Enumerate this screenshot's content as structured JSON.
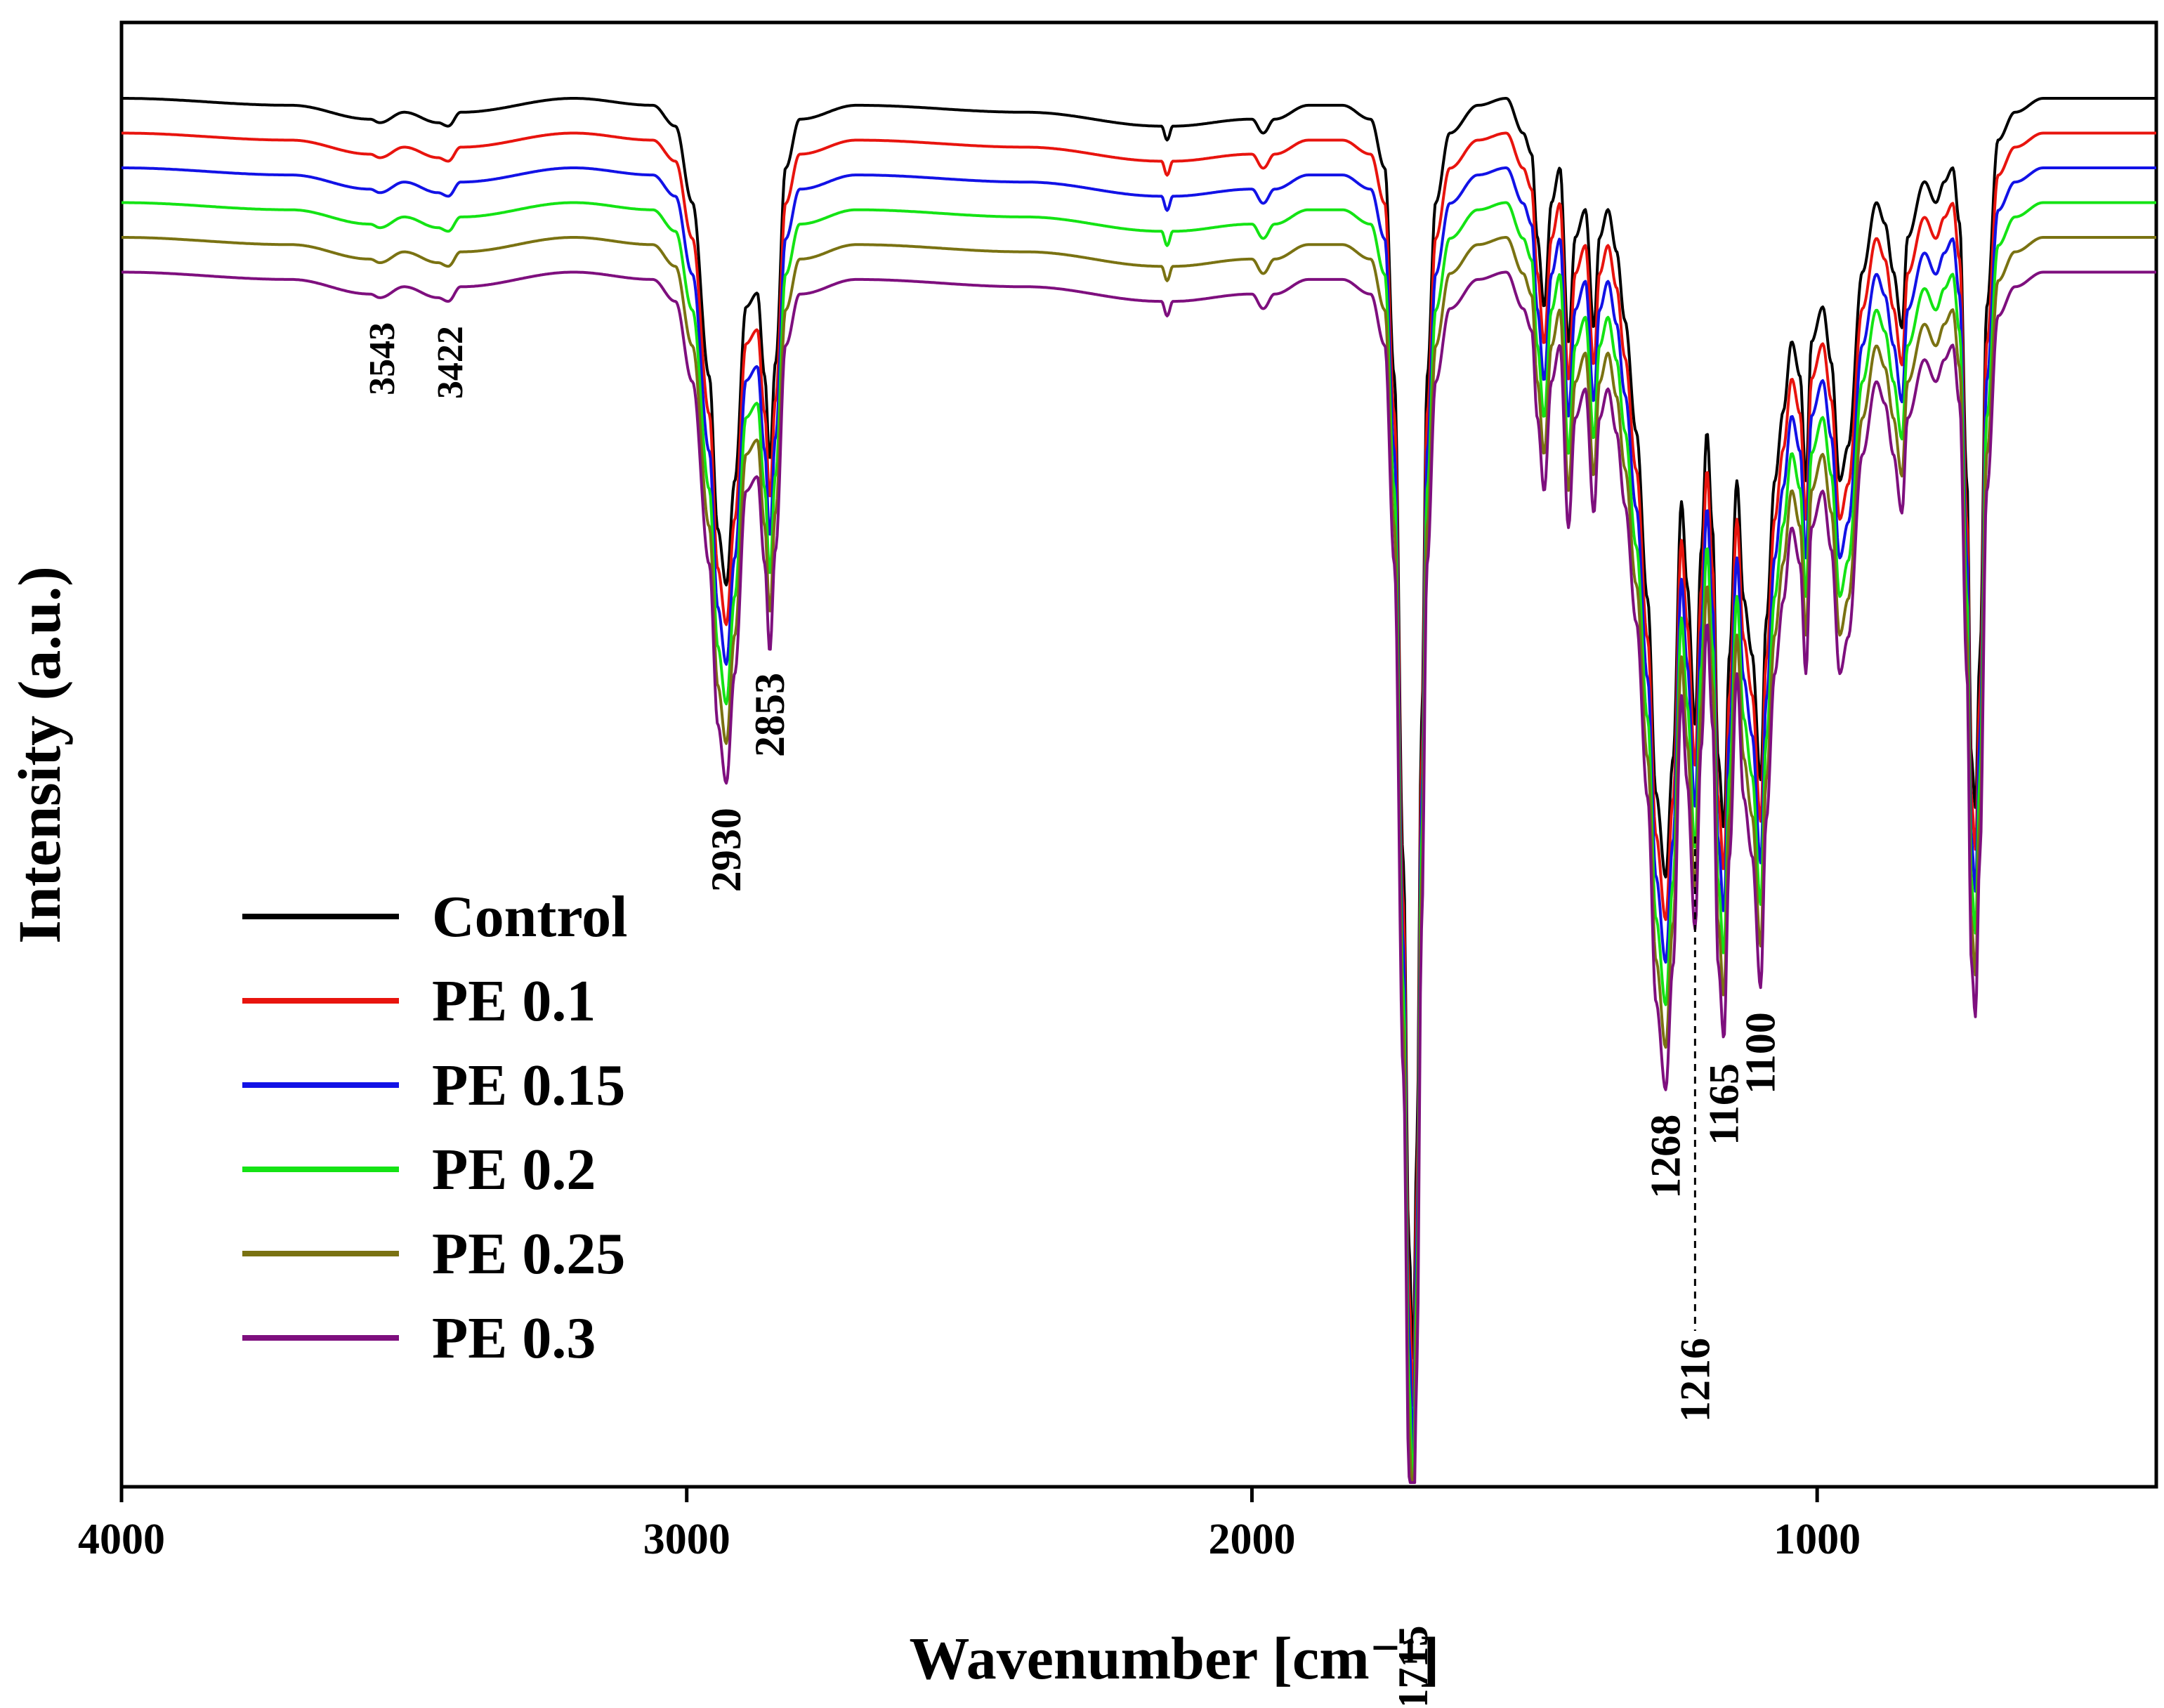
{
  "chart_data": {
    "type": "line",
    "title": "",
    "xlabel": "Wavenumber [cm⁻¹]",
    "ylabel": "Intensity (a.u.)",
    "xlim": [
      4000,
      400
    ],
    "x_reversed": true,
    "x_ticks": [
      {
        "value": 4000,
        "label": "4000"
      },
      {
        "value": 3000,
        "label": "3000"
      },
      {
        "value": 2000,
        "label": "2000"
      },
      {
        "value": 1000,
        "label": "1000"
      }
    ],
    "y_ticks_shown": false,
    "grid": false,
    "legend_position": "lower-left",
    "note": "",
    "baseline_profile": [
      [
        4000,
        0.0
      ],
      [
        3700,
        0.01
      ],
      [
        3560,
        0.03
      ],
      [
        3543,
        0.035
      ],
      [
        3500,
        0.02
      ],
      [
        3440,
        0.035
      ],
      [
        3422,
        0.04
      ],
      [
        3400,
        0.02
      ],
      [
        3200,
        0.0
      ],
      [
        3060,
        0.01
      ],
      [
        3020,
        0.04
      ],
      [
        2990,
        0.15
      ],
      [
        2960,
        0.4
      ],
      [
        2945,
        0.62
      ],
      [
        2930,
        0.7
      ],
      [
        2915,
        0.55
      ],
      [
        2895,
        0.3
      ],
      [
        2875,
        0.28
      ],
      [
        2862,
        0.4
      ],
      [
        2853,
        0.52
      ],
      [
        2843,
        0.38
      ],
      [
        2825,
        0.1
      ],
      [
        2800,
        0.03
      ],
      [
        2700,
        0.01
      ],
      [
        2400,
        0.02
      ],
      [
        2160,
        0.04
      ],
      [
        2150,
        0.06
      ],
      [
        2140,
        0.04
      ],
      [
        2000,
        0.03
      ],
      [
        1980,
        0.05
      ],
      [
        1960,
        0.03
      ],
      [
        1900,
        0.01
      ],
      [
        1840,
        0.01
      ],
      [
        1790,
        0.03
      ],
      [
        1765,
        0.1
      ],
      [
        1748,
        0.4
      ],
      [
        1732,
        1.1
      ],
      [
        1722,
        1.65
      ],
      [
        1715,
        1.82
      ],
      [
        1708,
        1.5
      ],
      [
        1700,
        0.9
      ],
      [
        1690,
        0.4
      ],
      [
        1675,
        0.15
      ],
      [
        1650,
        0.05
      ],
      [
        1600,
        0.01
      ],
      [
        1550,
        0.0
      ],
      [
        1520,
        0.05
      ],
      [
        1505,
        0.08
      ],
      [
        1495,
        0.2
      ],
      [
        1483,
        0.3
      ],
      [
        1470,
        0.15
      ],
      [
        1455,
        0.1
      ],
      [
        1440,
        0.35
      ],
      [
        1428,
        0.2
      ],
      [
        1410,
        0.16
      ],
      [
        1395,
        0.33
      ],
      [
        1385,
        0.2
      ],
      [
        1370,
        0.16
      ],
      [
        1355,
        0.22
      ],
      [
        1340,
        0.32
      ],
      [
        1320,
        0.48
      ],
      [
        1300,
        0.72
      ],
      [
        1285,
        1.0
      ],
      [
        1268,
        1.12
      ],
      [
        1255,
        0.95
      ],
      [
        1240,
        0.58
      ],
      [
        1230,
        0.7
      ],
      [
        1216,
        0.9
      ],
      [
        1205,
        0.65
      ],
      [
        1195,
        0.48
      ],
      [
        1185,
        0.62
      ],
      [
        1175,
        0.95
      ],
      [
        1165,
        1.05
      ],
      [
        1155,
        0.8
      ],
      [
        1142,
        0.55
      ],
      [
        1130,
        0.72
      ],
      [
        1115,
        0.8
      ],
      [
        1100,
        0.98
      ],
      [
        1090,
        0.75
      ],
      [
        1075,
        0.55
      ],
      [
        1060,
        0.45
      ],
      [
        1045,
        0.35
      ],
      [
        1030,
        0.4
      ],
      [
        1020,
        0.55
      ],
      [
        1010,
        0.35
      ],
      [
        990,
        0.3
      ],
      [
        975,
        0.38
      ],
      [
        960,
        0.55
      ],
      [
        945,
        0.5
      ],
      [
        920,
        0.25
      ],
      [
        895,
        0.15
      ],
      [
        880,
        0.18
      ],
      [
        865,
        0.25
      ],
      [
        850,
        0.33
      ],
      [
        840,
        0.2
      ],
      [
        810,
        0.12
      ],
      [
        790,
        0.15
      ],
      [
        775,
        0.12
      ],
      [
        760,
        0.1
      ],
      [
        748,
        0.18
      ],
      [
        735,
        0.55
      ],
      [
        727,
        0.95
      ],
      [
        720,
        1.02
      ],
      [
        712,
        0.8
      ],
      [
        700,
        0.3
      ],
      [
        680,
        0.06
      ],
      [
        650,
        0.02
      ],
      [
        600,
        0.0
      ],
      [
        500,
        0.0
      ],
      [
        400,
        0.0
      ]
    ],
    "series": [
      {
        "name": "Control",
        "color": "#000000",
        "offset": 0.0,
        "scale": 1.0
      },
      {
        "name": "PE 0.1",
        "color": "#e8140e",
        "offset": 0.05,
        "scale": 1.01
      },
      {
        "name": "PE 0.15",
        "color": "#1212e6",
        "offset": 0.1,
        "scale": 1.02
      },
      {
        "name": "PE 0.2",
        "color": "#14e314",
        "offset": 0.15,
        "scale": 1.03
      },
      {
        "name": "PE 0.25",
        "color": "#7a7212",
        "offset": 0.2,
        "scale": 1.04
      },
      {
        "name": "PE 0.3",
        "color": "#7e0f7e",
        "offset": 0.25,
        "scale": 1.05
      }
    ],
    "annotations": [
      {
        "x": 3543,
        "label": "3543",
        "small": true
      },
      {
        "x": 3422,
        "label": "3422",
        "small": true
      },
      {
        "x": 2930,
        "label": "2930",
        "small": false
      },
      {
        "x": 2853,
        "label": "2853",
        "small": false
      },
      {
        "x": 1715,
        "label": "1715",
        "small": false
      },
      {
        "x": 1268,
        "label": "1268",
        "small": false
      },
      {
        "x": 1216,
        "label": "1216",
        "small": false,
        "dashed_guide": true
      },
      {
        "x": 1165,
        "label": "1165",
        "small": false
      },
      {
        "x": 1100,
        "label": "1100",
        "small": false
      }
    ]
  }
}
